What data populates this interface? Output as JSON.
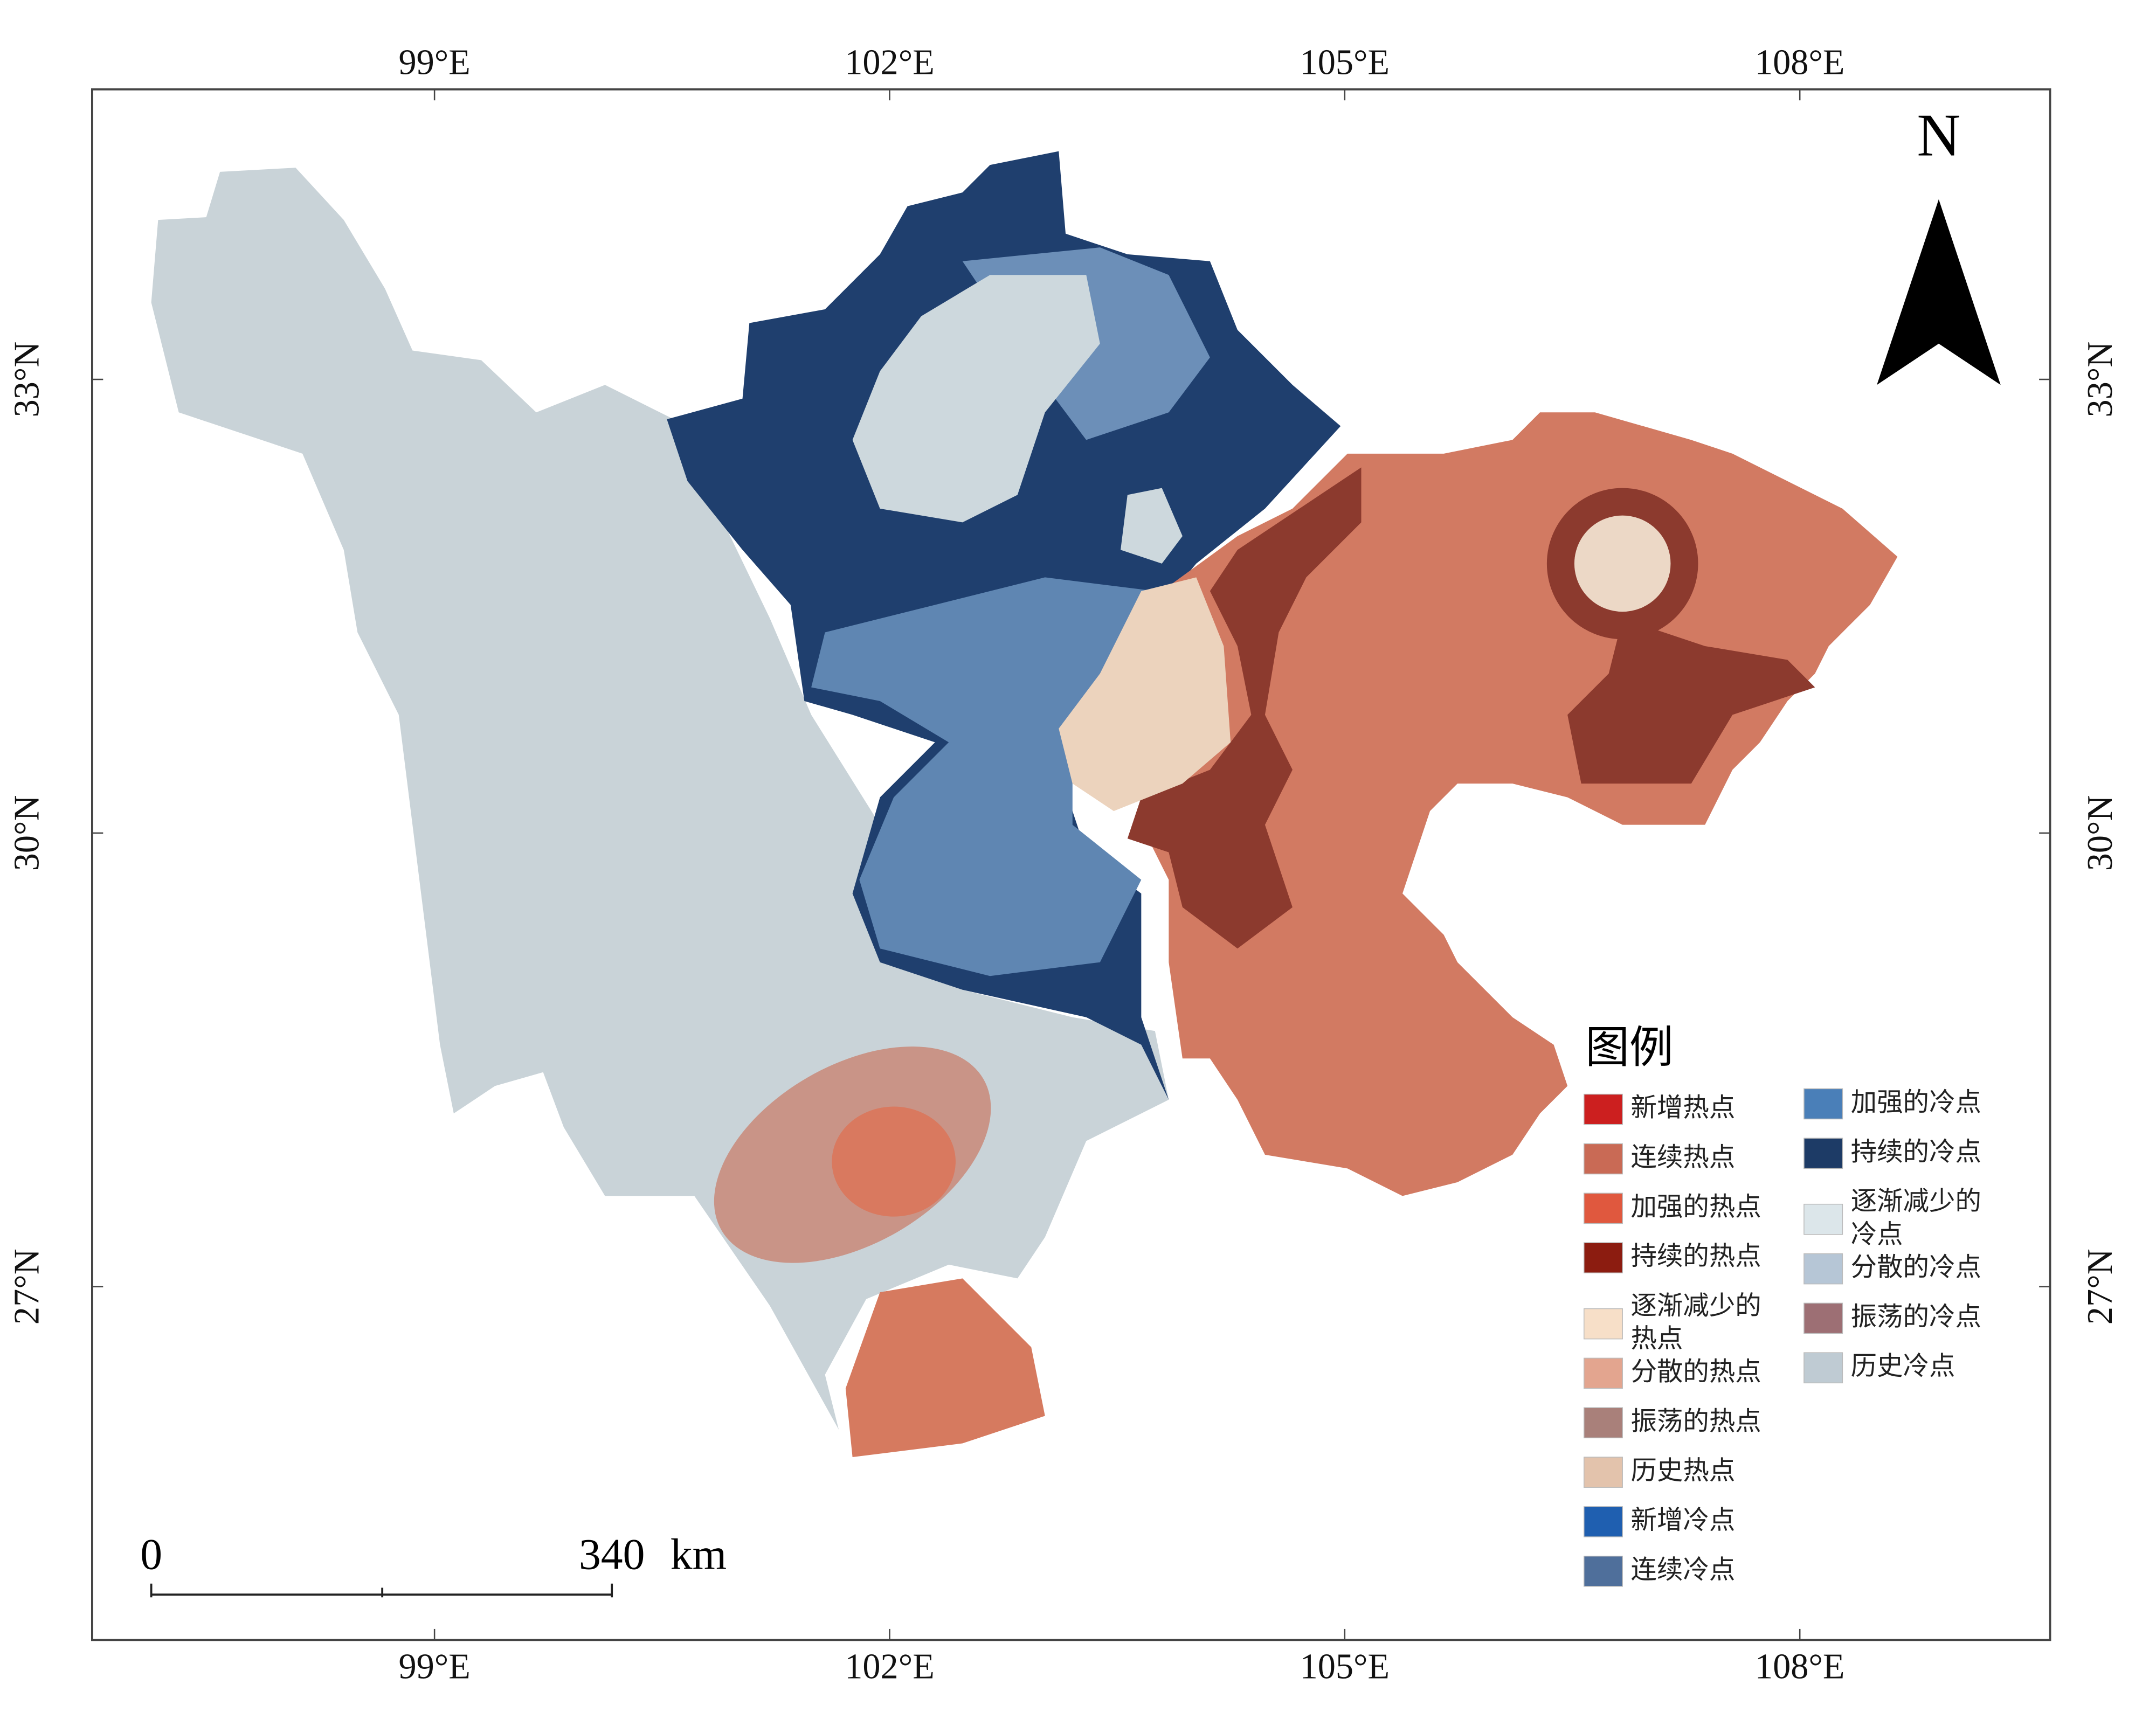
{
  "map": {
    "lon_ticks": [
      {
        "value": 99,
        "label": "99°E"
      },
      {
        "value": 102,
        "label": "102°E"
      },
      {
        "value": 105,
        "label": "105°E"
      },
      {
        "value": 108,
        "label": "108°E"
      }
    ],
    "lat_ticks": [
      {
        "value": 33,
        "label": "33°N"
      },
      {
        "value": 30,
        "label": "30°N"
      },
      {
        "value": 27,
        "label": "27°N"
      }
    ],
    "north_arrow": "N",
    "scale_bar": {
      "start": "0",
      "end": "340",
      "unit": "km"
    },
    "legend": {
      "title": "图例",
      "items": [
        {
          "lines": [
            "新增热点"
          ],
          "color": "#cc1f1f"
        },
        {
          "lines": [
            "连续热点"
          ],
          "color": "#c96a55"
        },
        {
          "lines": [
            "加强的热点"
          ],
          "color": "#e0583e"
        },
        {
          "lines": [
            "持续的热点"
          ],
          "color": "#8c1c10"
        },
        {
          "lines": [
            "逐渐减少的",
            "热点"
          ],
          "color": "#f7dfc8"
        },
        {
          "lines": [
            "分散的热点"
          ],
          "color": "#e3a58f"
        },
        {
          "lines": [
            "振荡的热点"
          ],
          "color": "#a9807a"
        },
        {
          "lines": [
            "历史热点"
          ],
          "color": "#e3c3ac"
        },
        {
          "lines": [
            "新增冷点"
          ],
          "color": "#1f5fb0"
        },
        {
          "lines": [
            "连续冷点"
          ],
          "color": "#4f6f9b"
        },
        {
          "lines": [
            "加强的冷点"
          ],
          "color": "#4a7fb8"
        },
        {
          "lines": [
            "持续的冷点"
          ],
          "color": "#1d3b66"
        },
        {
          "lines": [
            "逐渐减少的",
            "冷点"
          ],
          "color": "#dce6ea"
        },
        {
          "lines": [
            "分散的冷点"
          ],
          "color": "#b6c6d6"
        },
        {
          "lines": [
            "振荡的冷点"
          ],
          "color": "#9d6f74"
        },
        {
          "lines": [
            "历史冷点"
          ],
          "color": "#bfcbd3"
        }
      ]
    }
  }
}
